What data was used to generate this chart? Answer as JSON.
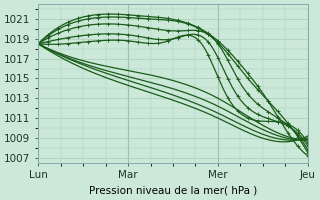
{
  "bg_color": "#cce8d8",
  "grid_color": "#aaccb8",
  "line_color": "#1a5c1a",
  "ylabel": "Pression niveau de la mer( hPa )",
  "xtick_labels": [
    "Lun",
    "Mar",
    "Mer",
    "Jeu"
  ],
  "ytick_values": [
    1007,
    1009,
    1011,
    1013,
    1015,
    1017,
    1019,
    1021
  ],
  "ylim": [
    1006.5,
    1022.5
  ],
  "xlim": [
    0,
    72
  ],
  "x_ticks": [
    0,
    24,
    48,
    72
  ],
  "label_fontsize": 7.5
}
